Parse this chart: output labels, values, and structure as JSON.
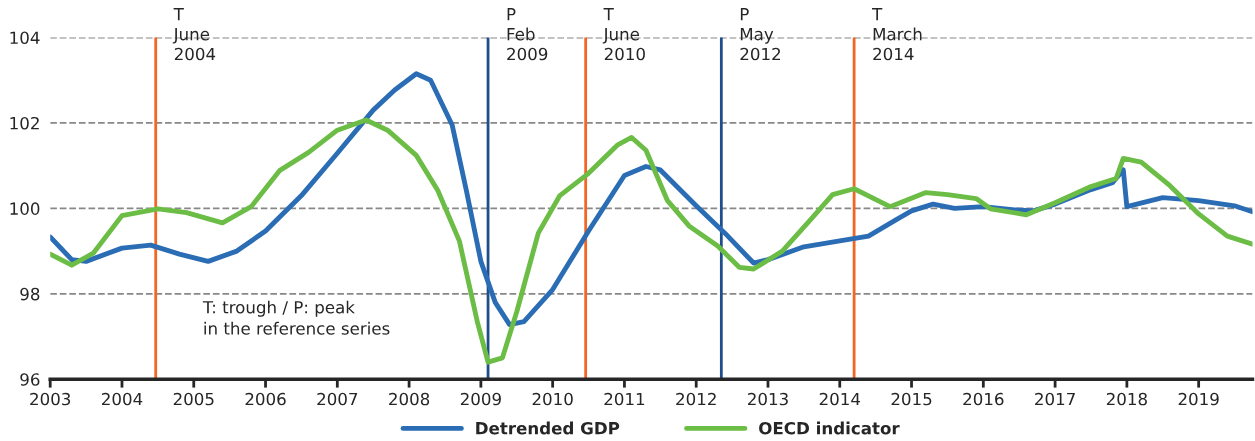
{
  "chart_data": {
    "type": "line",
    "xlim": [
      2003,
      2019.75
    ],
    "xticks": [
      2003,
      2004,
      2005,
      2006,
      2007,
      2008,
      2009,
      2010,
      2011,
      2012,
      2013,
      2014,
      2015,
      2016,
      2017,
      2018,
      2019
    ],
    "ylim": [
      96,
      104
    ],
    "yticks": [
      96,
      98,
      100,
      102,
      104
    ],
    "grid": "y",
    "legend": "bottom",
    "series": [
      {
        "name": "Detrended GDP",
        "color": "#2a6db5",
        "x": [
          2003,
          2003.3,
          2003.5,
          2004,
          2004.4,
          2004.8,
          2005.2,
          2005.6,
          2006,
          2006.5,
          2007,
          2007.5,
          2007.8,
          2008.1,
          2008.3,
          2008.6,
          2008.8,
          2009.0,
          2009.2,
          2009.4,
          2009.6,
          2010,
          2010.5,
          2011,
          2011.3,
          2011.5,
          2012,
          2012.4,
          2012.8,
          2013,
          2013.5,
          2014,
          2014.4,
          2014.8,
          2015,
          2015.3,
          2015.6,
          2016,
          2016.4,
          2016.7,
          2017,
          2017.5,
          2017.8,
          2017.95,
          2018.0,
          2018.5,
          2019,
          2019.5,
          2019.75
        ],
        "values": [
          99.33,
          98.8,
          98.76,
          99.07,
          99.14,
          98.93,
          98.76,
          99.0,
          99.47,
          100.3,
          101.29,
          102.3,
          102.77,
          103.15,
          103.0,
          101.95,
          100.4,
          98.76,
          97.8,
          97.28,
          97.35,
          98.1,
          99.47,
          100.77,
          100.98,
          100.9,
          100.06,
          99.42,
          98.72,
          98.8,
          99.1,
          99.24,
          99.35,
          99.75,
          99.94,
          100.1,
          100.0,
          100.04,
          99.97,
          99.94,
          100.1,
          100.44,
          100.6,
          100.9,
          100.04,
          100.25,
          100.18,
          100.06,
          99.92
        ]
      },
      {
        "name": "OECD indicator",
        "color": "#6cbd45",
        "x": [
          2003,
          2003.3,
          2003.6,
          2004,
          2004.5,
          2004.9,
          2005.4,
          2005.8,
          2006.2,
          2006.6,
          2007,
          2007.4,
          2007.7,
          2008.1,
          2008.4,
          2008.7,
          2008.95,
          2009.1,
          2009.3,
          2009.5,
          2009.8,
          2010.1,
          2010.5,
          2010.9,
          2011.1,
          2011.3,
          2011.6,
          2011.9,
          2012.3,
          2012.6,
          2012.8,
          2013.2,
          2013.6,
          2013.9,
          2014.2,
          2014.7,
          2015.2,
          2015.5,
          2015.9,
          2016.1,
          2016.6,
          2017,
          2017.5,
          2017.85,
          2017.95,
          2018.2,
          2018.6,
          2019,
          2019.4,
          2019.75
        ],
        "values": [
          98.93,
          98.67,
          98.95,
          99.83,
          99.99,
          99.9,
          99.66,
          100.04,
          100.89,
          101.31,
          101.83,
          102.07,
          101.83,
          101.24,
          100.42,
          99.24,
          97.35,
          96.4,
          96.5,
          97.58,
          99.42,
          100.3,
          100.82,
          101.48,
          101.66,
          101.36,
          100.18,
          99.59,
          99.12,
          98.62,
          98.58,
          99.0,
          99.75,
          100.32,
          100.46,
          100.04,
          100.37,
          100.32,
          100.23,
          99.99,
          99.85,
          100.13,
          100.51,
          100.7,
          101.17,
          101.08,
          100.53,
          99.87,
          99.35,
          99.16
        ]
      }
    ],
    "ref_lines": [
      {
        "axis": "x",
        "value": 2004.47,
        "label": "T\nJune\n2004",
        "color": "#f26522"
      },
      {
        "axis": "x",
        "value": 2009.1,
        "label": "P\nFeb\n2009",
        "color": "#1f4e8c"
      },
      {
        "axis": "x",
        "value": 2010.46,
        "label": "T\nJune\n2010",
        "color": "#f26522"
      },
      {
        "axis": "x",
        "value": 2012.35,
        "label": "P\nMay\n2012",
        "color": "#1f4e8c"
      },
      {
        "axis": "x",
        "value": 2014.2,
        "label": "T\nMarch\n2014",
        "color": "#f26522"
      }
    ],
    "annotations": [
      "T: trough / P: peak\nin the reference series"
    ]
  }
}
